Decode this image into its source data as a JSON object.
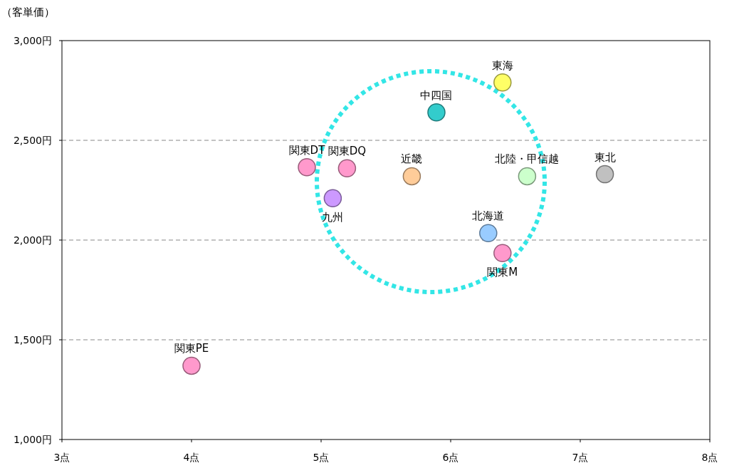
{
  "chart_data": {
    "type": "scatter",
    "ylabel": "（客単価）",
    "grid": "y",
    "marker": "circle",
    "xlim": [
      3,
      8
    ],
    "xticks": [
      {
        "value": 3,
        "label": "3点"
      },
      {
        "value": 4,
        "label": "4点"
      },
      {
        "value": 5,
        "label": "5点"
      },
      {
        "value": 6,
        "label": "6点"
      },
      {
        "value": 7,
        "label": "7点"
      },
      {
        "value": 8,
        "label": "8点"
      }
    ],
    "ylim": [
      1000,
      3000
    ],
    "yticks": [
      {
        "value": 1000,
        "label": "1,000円"
      },
      {
        "value": 1500,
        "label": "1,500円"
      },
      {
        "value": 2000,
        "label": "2,000円"
      },
      {
        "value": 2500,
        "label": "2,500円"
      },
      {
        "value": 3000,
        "label": "3,000円"
      }
    ],
    "series": [
      {
        "name": "東海",
        "color": "#ffff66",
        "x": [
          6.4
        ],
        "values": [
          2790
        ]
      },
      {
        "name": "中四国",
        "color": "#33cccc",
        "x": [
          5.89
        ],
        "values": [
          2640
        ]
      },
      {
        "name": "関東DT",
        "color": "#ff99cc",
        "x": [
          4.89
        ],
        "values": [
          2365
        ]
      },
      {
        "name": "関東DQ",
        "color": "#ff99cc",
        "x": [
          5.2
        ],
        "values": [
          2360
        ]
      },
      {
        "name": "近畿",
        "color": "#ffcc99",
        "x": [
          5.7
        ],
        "values": [
          2320
        ]
      },
      {
        "name": "北陸・甲信越",
        "color": "#ccffcc",
        "x": [
          6.59
        ],
        "values": [
          2320
        ]
      },
      {
        "name": "東北",
        "color": "#c0c0c0",
        "x": [
          7.19
        ],
        "values": [
          2330
        ]
      },
      {
        "name": "九州",
        "color": "#cc99ff",
        "x": [
          5.09
        ],
        "values": [
          2210
        ]
      },
      {
        "name": "北海道",
        "color": "#99ccff",
        "x": [
          6.29
        ],
        "values": [
          2035
        ]
      },
      {
        "name": "関東M",
        "color": "#ff99cc",
        "x": [
          6.4
        ],
        "values": [
          1935
        ]
      },
      {
        "name": "関東PE",
        "color": "#ff99cc",
        "x": [
          4.0
        ],
        "values": [
          1370
        ]
      }
    ]
  }
}
